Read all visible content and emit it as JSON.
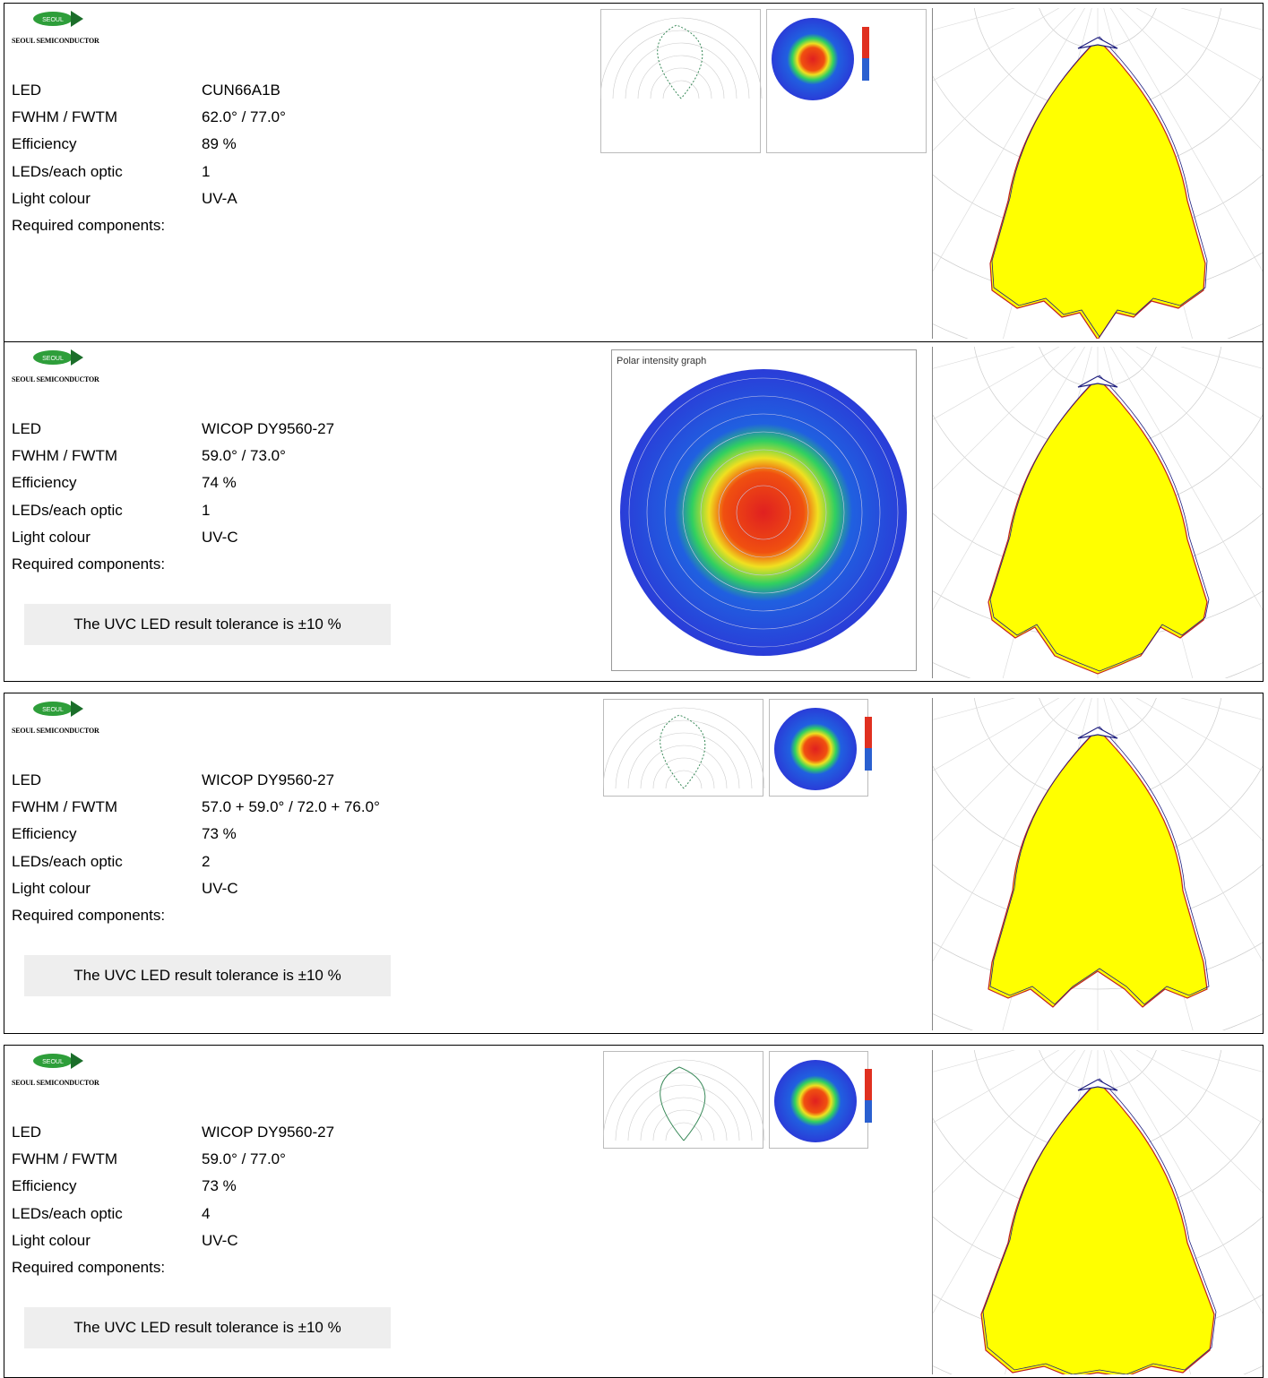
{
  "brand": "SEOUL SEMICONDUCTOR",
  "logo_text": "SEOUL",
  "cards": [
    {
      "rows": [
        {
          "label": "LED",
          "value": "CUN66A1B"
        },
        {
          "label": "FWHM / FWTM",
          "value": "62.0° / 77.0°"
        },
        {
          "label": "Efficiency",
          "value": "89 %"
        },
        {
          "label": "LEDs/each optic",
          "value": "1"
        },
        {
          "label": "Light colour",
          "value": "UV-A"
        }
      ],
      "required": "Required components:"
    },
    {
      "rows": [
        {
          "label": "LED",
          "value": "WICOP DY9560-27"
        },
        {
          "label": "FWHM / FWTM",
          "value": "59.0° / 73.0°"
        },
        {
          "label": "Efficiency",
          "value": "74 %"
        },
        {
          "label": "LEDs/each optic",
          "value": "1"
        },
        {
          "label": "Light colour",
          "value": "UV-C"
        }
      ],
      "required": "Required components:",
      "note": "The UVC LED result tolerance is ±10 %",
      "graph_title": "Polar intensity graph"
    },
    {
      "rows": [
        {
          "label": "LED",
          "value": "WICOP DY9560-27"
        },
        {
          "label": "FWHM / FWTM",
          "value": "57.0 + 59.0° / 72.0 + 76.0°"
        },
        {
          "label": "Efficiency",
          "value": "73 %"
        },
        {
          "label": "LEDs/each optic",
          "value": "2"
        },
        {
          "label": "Light colour",
          "value": "UV-C"
        }
      ],
      "required": "Required components:",
      "note": "The UVC LED result tolerance is ±10 %"
    },
    {
      "rows": [
        {
          "label": "LED",
          "value": "WICOP DY9560-27"
        },
        {
          "label": "FWHM / FWTM",
          "value": "59.0° / 77.0°"
        },
        {
          "label": "Efficiency",
          "value": "73 %"
        },
        {
          "label": "LEDs/each optic",
          "value": "4"
        },
        {
          "label": "Light colour",
          "value": "UV-C"
        }
      ],
      "required": "Required components:",
      "note": "The UVC LED result tolerance is ±10 %"
    }
  ]
}
